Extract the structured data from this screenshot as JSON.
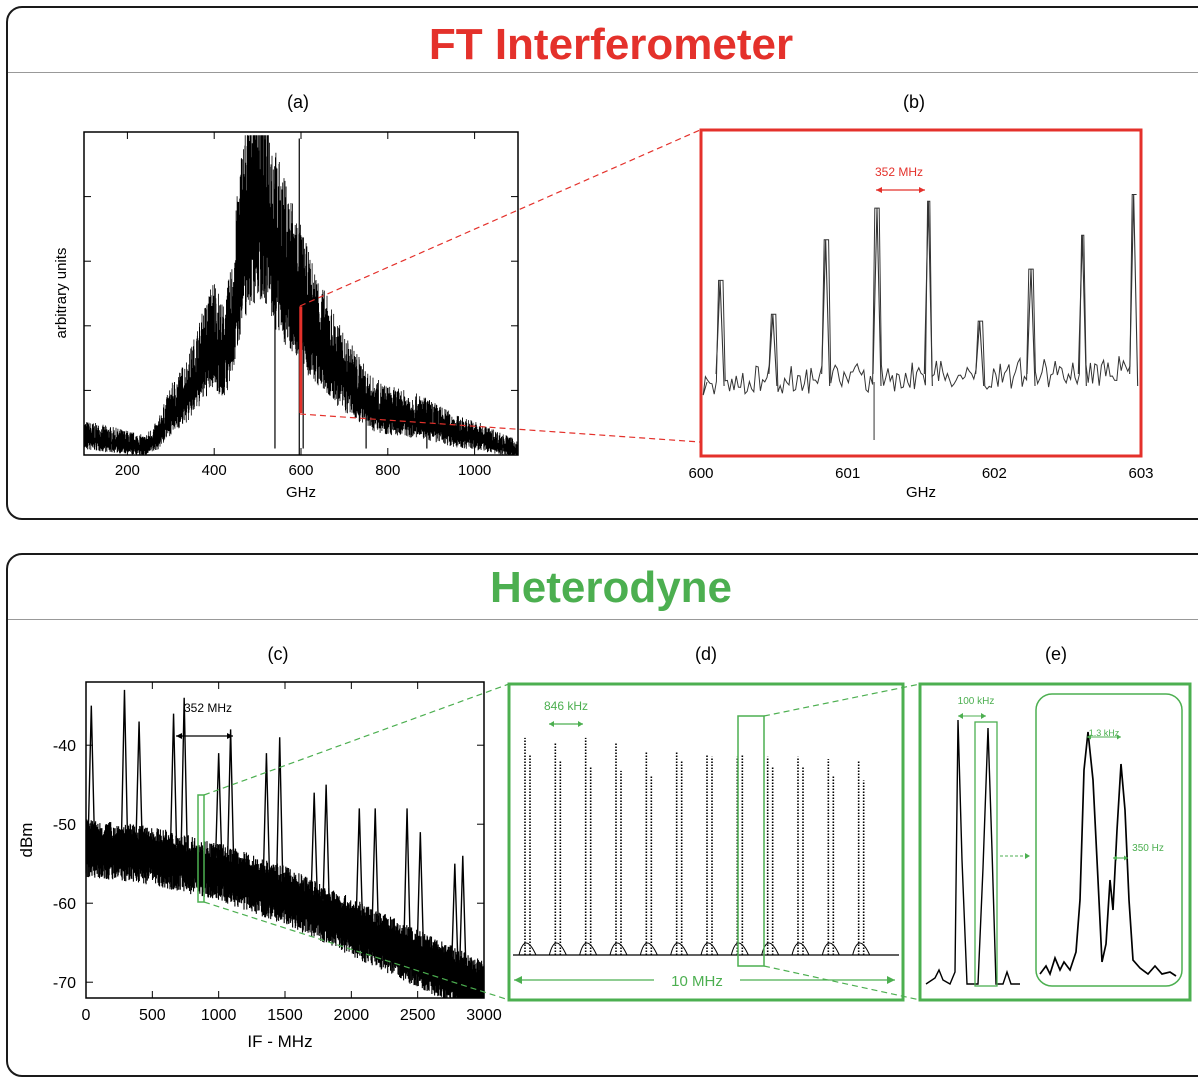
{
  "sections": {
    "ft": {
      "title": "FT Interferometer",
      "color": "#e4312b"
    },
    "het": {
      "title": "Heterodyne",
      "color": "#4caf50"
    }
  },
  "colors": {
    "red": "#e4312b",
    "green": "#4caf50",
    "trace": "#000000"
  },
  "chart_data": [
    {
      "id": "a",
      "panel_label": "(a)",
      "type": "line",
      "xlabel": "GHz",
      "ylabel": "arbitrary units",
      "xlim": [
        100,
        1100
      ],
      "ylim": [
        0,
        1
      ],
      "xticks": [
        200,
        400,
        600,
        800,
        1000
      ],
      "series": [
        {
          "x": [
            100,
            150,
            200,
            240,
            270,
            300,
            340,
            370,
            400,
            420,
            440,
            460,
            480,
            500,
            520,
            540,
            560,
            580,
            600,
            620,
            640,
            660,
            700,
            720,
            760,
            800,
            840,
            880,
            920,
            960,
            1000,
            1050,
            1100
          ],
          "y": [
            0.05,
            0.04,
            0.03,
            0.02,
            0.05,
            0.12,
            0.18,
            0.26,
            0.34,
            0.28,
            0.36,
            0.58,
            0.7,
            0.74,
            0.72,
            0.6,
            0.54,
            0.5,
            0.44,
            0.38,
            0.34,
            0.3,
            0.22,
            0.2,
            0.14,
            0.12,
            0.11,
            0.1,
            0.08,
            0.06,
            0.05,
            0.03,
            0.01
          ]
        }
      ],
      "highlight_x": [
        596,
        603
      ]
    },
    {
      "id": "b",
      "panel_label": "(b)",
      "type": "line",
      "xlabel": "GHz",
      "xlim": [
        600,
        603
      ],
      "xticks": [
        600,
        601,
        602,
        603
      ],
      "peaks": [
        600.13,
        600.49,
        600.85,
        601.2,
        601.55,
        601.9,
        602.25,
        602.6,
        602.95
      ],
      "peak_heights": [
        0.6,
        0.45,
        0.78,
        0.92,
        0.95,
        0.42,
        0.65,
        0.8,
        0.98
      ],
      "annotation": "352 MHz"
    },
    {
      "id": "c",
      "panel_label": "(c)",
      "type": "line",
      "xlabel": "IF - MHz",
      "ylabel": "dBm",
      "xlim": [
        0,
        3000
      ],
      "ylim": [
        -72,
        -32
      ],
      "xticks": [
        0,
        500,
        1000,
        1500,
        2000,
        2500,
        3000
      ],
      "yticks": [
        -40,
        -50,
        -60,
        -70
      ],
      "baseline": {
        "x": [
          0,
          500,
          1000,
          1500,
          2000,
          2500,
          3000
        ],
        "y": [
          -53,
          -54,
          -56,
          -59,
          -63,
          -67,
          -71
        ]
      },
      "peaks": [
        {
          "x": 40,
          "y": -35
        },
        {
          "x": 290,
          "y": -33
        },
        {
          "x": 400,
          "y": -37
        },
        {
          "x": 660,
          "y": -36
        },
        {
          "x": 740,
          "y": -34
        },
        {
          "x": 1000,
          "y": -41
        },
        {
          "x": 1090,
          "y": -38
        },
        {
          "x": 1360,
          "y": -41
        },
        {
          "x": 1460,
          "y": -39
        },
        {
          "x": 1720,
          "y": -46
        },
        {
          "x": 1810,
          "y": -45
        },
        {
          "x": 2060,
          "y": -48
        },
        {
          "x": 2180,
          "y": -48
        },
        {
          "x": 2420,
          "y": -48
        },
        {
          "x": 2520,
          "y": -51
        },
        {
          "x": 2780,
          "y": -55
        },
        {
          "x": 2840,
          "y": -54
        }
      ],
      "annotation": "352 MHz"
    },
    {
      "id": "d",
      "panel_label": "(d)",
      "type": "line",
      "annotation_top": "846 kHz",
      "annotation_bottom": "10 MHz",
      "n_lines": 12
    },
    {
      "id": "e",
      "panel_label": "(e)",
      "type": "line",
      "annotation_left": "100 kHz",
      "annotation_inset_top": "1.3 kHz",
      "annotation_inset_right": "350 Hz"
    }
  ]
}
